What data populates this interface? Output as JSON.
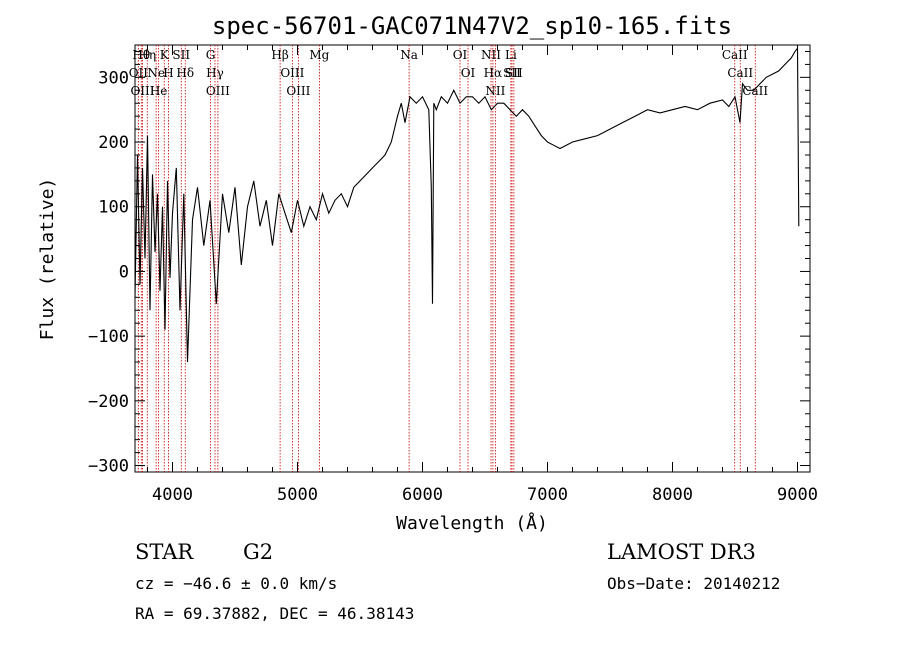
{
  "chart_data": {
    "type": "line",
    "title": "spec-56701-GAC071N47V2_sp10-165.fits",
    "xlabel": "Wavelength (Å)",
    "ylabel": "Flux (relative)",
    "xlim": [
      3700,
      9100
    ],
    "ylim": [
      -310,
      350
    ],
    "xticks": [
      4000,
      5000,
      6000,
      7000,
      8000,
      9000
    ],
    "xtick_labels": [
      "4000",
      "5000",
      "6000",
      "7000",
      "8000",
      "9000"
    ],
    "yticks": [
      -300,
      -200,
      -100,
      0,
      100,
      200,
      300
    ],
    "ytick_labels": [
      "−300",
      "−200",
      "−100",
      "0",
      "100",
      "200",
      "300"
    ],
    "series": [
      {
        "name": "spectrum",
        "x": [
          3700,
          3720,
          3740,
          3760,
          3780,
          3800,
          3820,
          3840,
          3860,
          3880,
          3900,
          3920,
          3940,
          3960,
          3980,
          4000,
          4030,
          4060,
          4090,
          4120,
          4160,
          4200,
          4250,
          4300,
          4350,
          4400,
          4450,
          4500,
          4550,
          4600,
          4650,
          4700,
          4750,
          4800,
          4850,
          4900,
          4950,
          5000,
          5050,
          5100,
          5150,
          5200,
          5250,
          5300,
          5350,
          5400,
          5450,
          5500,
          5550,
          5600,
          5650,
          5700,
          5750,
          5800,
          5830,
          5860,
          5900,
          5950,
          6000,
          6050,
          6070,
          6080,
          6090,
          6110,
          6150,
          6200,
          6250,
          6300,
          6350,
          6400,
          6450,
          6500,
          6550,
          6600,
          6650,
          6700,
          6750,
          6800,
          6850,
          6900,
          6950,
          7000,
          7050,
          7100,
          7150,
          7200,
          7300,
          7400,
          7500,
          7600,
          7700,
          7800,
          7900,
          8000,
          8100,
          8200,
          8300,
          8400,
          8450,
          8500,
          8540,
          8560,
          8600,
          8650,
          8700,
          8750,
          8800,
          8850,
          8900,
          8950,
          8980,
          9000,
          9010
        ],
        "y": [
          -40,
          180,
          -20,
          160,
          20,
          210,
          -60,
          150,
          30,
          120,
          -30,
          100,
          -90,
          140,
          -10,
          90,
          160,
          -60,
          120,
          -140,
          80,
          130,
          40,
          110,
          -50,
          120,
          60,
          130,
          10,
          100,
          140,
          70,
          110,
          40,
          120,
          90,
          60,
          110,
          70,
          100,
          80,
          120,
          90,
          110,
          120,
          100,
          130,
          140,
          150,
          160,
          170,
          180,
          200,
          240,
          260,
          230,
          270,
          260,
          270,
          250,
          130,
          -50,
          260,
          250,
          270,
          260,
          280,
          260,
          270,
          270,
          260,
          270,
          250,
          260,
          260,
          250,
          240,
          250,
          240,
          225,
          210,
          200,
          195,
          190,
          195,
          200,
          205,
          210,
          220,
          230,
          240,
          250,
          245,
          250,
          255,
          250,
          260,
          265,
          255,
          270,
          230,
          290,
          280,
          280,
          290,
          300,
          305,
          310,
          320,
          330,
          340,
          345,
          70
        ]
      }
    ],
    "line_markers": [
      {
        "wavelength": 3750,
        "label": "Hθ"
      },
      {
        "wavelength": 3727,
        "label": "OII"
      },
      {
        "wavelength": 3760,
        "label": "OIII"
      },
      {
        "wavelength": 3798,
        "label": "Hη"
      },
      {
        "wavelength": 3869,
        "label": "Ne"
      },
      {
        "wavelength": 3889,
        "label": "He"
      },
      {
        "wavelength": 3934,
        "label": "K"
      },
      {
        "wavelength": 3968,
        "label": "H"
      },
      {
        "wavelength": 4070,
        "label": "SII"
      },
      {
        "wavelength": 4102,
        "label": "Hδ"
      },
      {
        "wavelength": 4304,
        "label": "G"
      },
      {
        "wavelength": 4340,
        "label": "Hγ"
      },
      {
        "wavelength": 4363,
        "label": "OIII"
      },
      {
        "wavelength": 4861,
        "label": "Hβ"
      },
      {
        "wavelength": 4959,
        "label": "OIII"
      },
      {
        "wavelength": 5007,
        "label": "OIII"
      },
      {
        "wavelength": 5175,
        "label": "Mg"
      },
      {
        "wavelength": 5893,
        "label": "Na"
      },
      {
        "wavelength": 6300,
        "label": "OI"
      },
      {
        "wavelength": 6364,
        "label": "OI"
      },
      {
        "wavelength": 6548,
        "label": "NII"
      },
      {
        "wavelength": 6563,
        "label": "Hα"
      },
      {
        "wavelength": 6583,
        "label": "NII"
      },
      {
        "wavelength": 6707,
        "label": "Li"
      },
      {
        "wavelength": 6716,
        "label": "SII"
      },
      {
        "wavelength": 6731,
        "label": "SII"
      },
      {
        "wavelength": 8498,
        "label": "CaII"
      },
      {
        "wavelength": 8542,
        "label": "CaII"
      },
      {
        "wavelength": 8662,
        "label": "CaII"
      }
    ],
    "marker_color": "#cc0000",
    "line_color": "#000000"
  },
  "info": {
    "object_class": "STAR",
    "subclass": "G2",
    "survey": "LAMOST DR3",
    "cz": "cz = −46.6 ± 0.0 km/s",
    "obs_date": "Obs−Date: 20140212",
    "coords": "RA =  69.37882, DEC =  46.38143"
  }
}
